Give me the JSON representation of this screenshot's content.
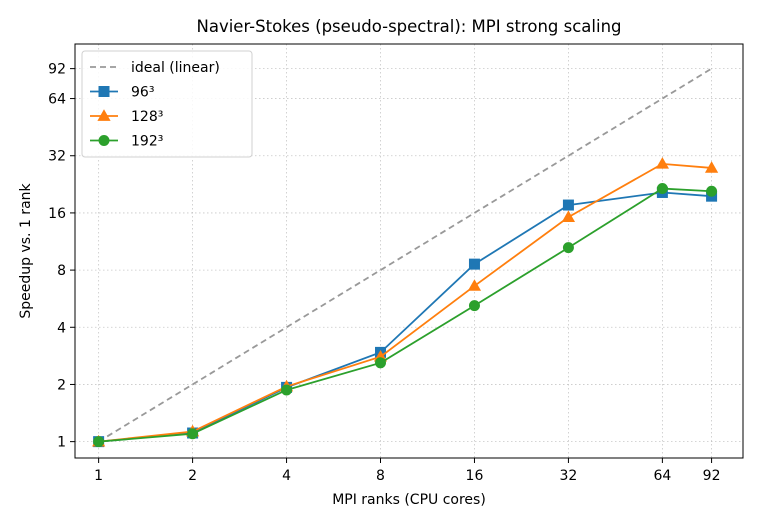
{
  "chart_data": {
    "type": "line",
    "title": "Navier-Stokes (pseudo-spectral): MPI strong scaling",
    "xlabel": "MPI ranks (CPU cores)",
    "ylabel": "Speedup vs. 1 rank",
    "xscale": "log2",
    "yscale": "log2",
    "xlim": [
      0.84,
      116
    ],
    "ylim": [
      0.82,
      124
    ],
    "x_ticks": [
      1,
      2,
      4,
      8,
      16,
      32,
      64,
      92
    ],
    "x_tick_labels": [
      "1",
      "2",
      "4",
      "8",
      "16",
      "32",
      "64",
      "92"
    ],
    "y_ticks": [
      1,
      2,
      4,
      8,
      16,
      32,
      64,
      92
    ],
    "y_tick_labels": [
      "1",
      "2",
      "4",
      "8",
      "16",
      "32",
      "64",
      "92"
    ],
    "grid": true,
    "legend_position": "top-left",
    "x": [
      1,
      2,
      4,
      8,
      16,
      32,
      64,
      92
    ],
    "series": [
      {
        "name": "ideal (linear)",
        "style": "dashed",
        "color": "#999999",
        "marker": "none",
        "values": [
          1,
          2,
          4,
          8,
          16,
          32,
          64,
          92
        ]
      },
      {
        "name": "96³",
        "style": "solid",
        "color": "#1f77b4",
        "marker": "square",
        "values": [
          1.0,
          1.11,
          1.93,
          2.95,
          8.6,
          17.6,
          20.5,
          19.6
        ]
      },
      {
        "name": "128³",
        "style": "solid",
        "color": "#ff7f0e",
        "marker": "triangle",
        "values": [
          1.0,
          1.13,
          1.95,
          2.8,
          6.6,
          15.2,
          29.0,
          27.6
        ]
      },
      {
        "name": "192³",
        "style": "solid",
        "color": "#2ca02c",
        "marker": "circle",
        "values": [
          1.0,
          1.1,
          1.87,
          2.6,
          5.2,
          10.5,
          21.5,
          20.8
        ]
      }
    ]
  }
}
